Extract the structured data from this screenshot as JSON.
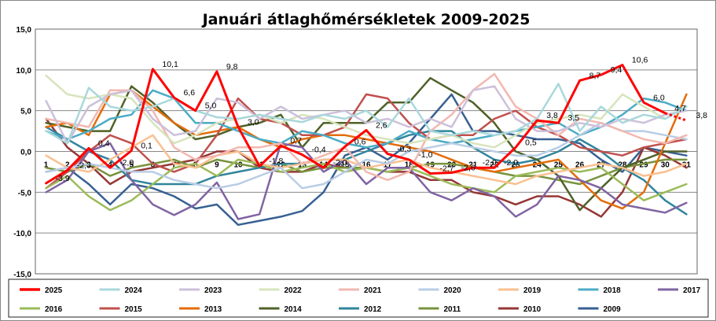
{
  "chart_data": {
    "type": "line",
    "title": "Januári átlaghőmérsékletek 2009-2025",
    "x": [
      1,
      2,
      3,
      4,
      5,
      6,
      7,
      8,
      9,
      10,
      11,
      12,
      13,
      14,
      15,
      16,
      17,
      18,
      19,
      20,
      21,
      22,
      23,
      24,
      25,
      26,
      27,
      28,
      29,
      30,
      31
    ],
    "ylim": [
      -15,
      15
    ],
    "yticks": [
      "15,0",
      "10,0",
      "5,0",
      "0,0",
      "-5,0",
      "-10,0",
      "-15,0"
    ],
    "grid": true,
    "legend_position": "bottom",
    "series": [
      {
        "name": "2025",
        "color": "#ff0000",
        "width": 3,
        "values": [
          -3.9,
          -2.3,
          0.4,
          -2.0,
          0.1,
          10.1,
          6.6,
          5.0,
          9.8,
          3.0,
          -1.8,
          0.7,
          -0.4,
          -2.0,
          0.6,
          2.6,
          -0.3,
          -1.0,
          -2.7,
          -2.6,
          -2.0,
          -2.0,
          0.5,
          3.8,
          3.5,
          8.7,
          9.4,
          10.6,
          6.0,
          4.7,
          3.8
        ],
        "labels": {
          "1": "-3,9",
          "2": "-2,3",
          "3": "0,4",
          "4": "-2,0",
          "5": "0,1",
          "6": "10,1",
          "7": "6,6",
          "8": "5,0",
          "9": "9,8",
          "10": "3,0",
          "11": "-1,8",
          "12": "0,7",
          "13": "-0,4",
          "14": "-2,0",
          "15": "0,6",
          "16": "2,6",
          "17": "-0,3",
          "18": "-1,0",
          "19": "-2,7",
          "20": "-2,6",
          "21": "-2,0",
          "22": "-2,0",
          "23": "0,5",
          "24": "3,8",
          "25": "3,5",
          "26": "8,7",
          "27": "9,4",
          "28": "10,6",
          "29": "6,0",
          "30": "4,7",
          "31": "3,8"
        }
      },
      {
        "name": "2024",
        "color": "#a9d8dc",
        "width": 2.5,
        "values": [
          2.5,
          1.0,
          7.8,
          5.5,
          5.0,
          5.5,
          6.5,
          5.0,
          4.2,
          4.0,
          4.5,
          4.0,
          3.6,
          4.5,
          4.0,
          5.0,
          3.0,
          6.5,
          2.5,
          2.0,
          2.5,
          2.0,
          2.5,
          4.0,
          8.3,
          2.5,
          5.5,
          3.5,
          4.5,
          4.0,
          5.5
        ]
      },
      {
        "name": "2023",
        "color": "#ccc0da",
        "width": 2.5,
        "values": [
          6.2,
          1.0,
          5.5,
          7.0,
          7.5,
          4.0,
          2.0,
          2.5,
          6.5,
          6.0,
          4.0,
          5.5,
          4.0,
          4.5,
          5.0,
          3.5,
          4.0,
          3.0,
          4.0,
          3.0,
          7.5,
          8.0,
          4.0,
          2.5,
          2.5,
          3.5,
          3.0,
          4.0,
          3.5,
          4.5,
          5.0
        ]
      },
      {
        "name": "2022",
        "color": "#d7e4bd",
        "width": 2.5,
        "values": [
          9.3,
          7.0,
          6.5,
          7.0,
          6.5,
          3.5,
          1.0,
          2.0,
          3.5,
          4.0,
          4.5,
          3.5,
          4.5,
          4.0,
          3.0,
          2.0,
          1.5,
          1.0,
          1.5,
          2.0,
          1.0,
          0.5,
          2.0,
          3.5,
          4.0,
          4.5,
          4.0,
          7.0,
          5.5,
          4.0,
          5.5
        ]
      },
      {
        "name": "2021",
        "color": "#f2b8b0",
        "width": 2.5,
        "values": [
          4.0,
          3.5,
          3.0,
          7.5,
          7.5,
          5.0,
          0.5,
          -1.0,
          -0.5,
          0.5,
          0.5,
          1.0,
          -1.5,
          -0.5,
          0.5,
          -2.5,
          -3.5,
          -2.5,
          2.5,
          4.5,
          7.5,
          9.5,
          5.5,
          4.0,
          2.0,
          4.0,
          3.5,
          2.5,
          1.5,
          1.0,
          2.0
        ]
      },
      {
        "name": "2020",
        "color": "#b9cde5",
        "width": 2.5,
        "values": [
          -2.5,
          -2.0,
          -1.5,
          -2.0,
          -2.5,
          -2.5,
          -3.5,
          -4.0,
          -4.5,
          -4.0,
          -3.0,
          -2.0,
          -4.5,
          -4.0,
          -2.5,
          -1.0,
          -1.5,
          0.0,
          0.5,
          1.0,
          0.5,
          0.0,
          -0.5,
          -0.5,
          0.5,
          2.0,
          3.5,
          2.5,
          2.5,
          2.0,
          1.5
        ]
      },
      {
        "name": "2019",
        "color": "#fac090",
        "width": 2.5,
        "values": [
          -0.5,
          -2.0,
          -2.5,
          -1.0,
          0.5,
          2.0,
          -1.5,
          -2.0,
          -0.5,
          0.0,
          -1.5,
          -2.0,
          -1.5,
          -1.0,
          -1.0,
          -2.0,
          -1.5,
          -1.0,
          -2.0,
          -2.5,
          -3.0,
          -3.5,
          -4.0,
          -3.0,
          -2.5,
          -2.0,
          -1.5,
          -2.0,
          -3.0,
          -2.5,
          -1.5
        ]
      },
      {
        "name": "2018",
        "color": "#4bacc6",
        "width": 2.5,
        "values": [
          2.5,
          1.5,
          2.5,
          4.0,
          4.5,
          7.5,
          6.5,
          3.5,
          3.5,
          2.5,
          1.5,
          1.0,
          2.5,
          2.0,
          1.0,
          0.5,
          1.0,
          2.5,
          1.5,
          1.0,
          1.5,
          2.0,
          2.5,
          3.0,
          3.5,
          2.0,
          3.0,
          4.5,
          6.5,
          6.0,
          5.0
        ]
      },
      {
        "name": "2017",
        "color": "#8064a2",
        "width": 2.5,
        "values": [
          -5.0,
          -3.5,
          0.0,
          1.0,
          -3.5,
          -6.5,
          -7.8,
          -6.5,
          -3.8,
          -8.3,
          -7.7,
          1.0,
          0.5,
          -2.5,
          -1.0,
          -4.0,
          -2.0,
          -2.0,
          -5.0,
          -6.0,
          -4.5,
          -5.5,
          -8.0,
          -6.5,
          -3.0,
          -3.5,
          -4.5,
          -6.5,
          -7.0,
          -7.5,
          -6.3
        ]
      },
      {
        "name": "2016",
        "color": "#9bbb59",
        "width": 2.5,
        "values": [
          -4.5,
          -3.0,
          -5.5,
          -7.2,
          -6.0,
          -4.0,
          -2.0,
          -1.5,
          -3.0,
          -1.0,
          -1.5,
          -2.5,
          -2.0,
          -1.5,
          -2.5,
          -2.0,
          -2.5,
          -2.0,
          -3.0,
          -4.0,
          -4.5,
          -5.0,
          -3.0,
          -2.5,
          -2.0,
          -2.5,
          -2.0,
          -4.0,
          -6.0,
          -5.0,
          -4.0
        ]
      },
      {
        "name": "2015",
        "color": "#c0504d",
        "width": 2.5,
        "values": [
          -4.5,
          -2.5,
          0.0,
          2.0,
          1.0,
          -1.5,
          -2.5,
          -1.5,
          2.0,
          6.5,
          4.0,
          3.5,
          2.0,
          2.0,
          3.0,
          7.0,
          6.5,
          3.5,
          1.5,
          2.0,
          2.0,
          4.0,
          5.0,
          3.0,
          2.0,
          0.5,
          0.0,
          -0.5,
          0.5,
          1.0,
          1.5
        ]
      },
      {
        "name": "2013",
        "color": "#e46c0a",
        "width": 2.5,
        "values": [
          3.0,
          3.5,
          2.0,
          7.0,
          7.5,
          5.5,
          3.5,
          2.0,
          2.5,
          3.0,
          1.5,
          0.5,
          1.5,
          2.0,
          2.0,
          1.5,
          1.0,
          0.5,
          0.0,
          -1.0,
          -2.0,
          -2.5,
          -2.0,
          -1.5,
          -1.0,
          -3.5,
          -6.0,
          -7.0,
          -5.0,
          1.0,
          7.0
        ]
      },
      {
        "name": "2014",
        "color": "#4f6228",
        "width": 2.5,
        "values": [
          3.5,
          3.0,
          2.5,
          2.5,
          8.0,
          6.0,
          3.5,
          1.5,
          2.0,
          3.0,
          3.5,
          4.5,
          0.5,
          3.5,
          3.5,
          3.5,
          6.0,
          6.0,
          9.0,
          7.5,
          6.0,
          3.5,
          0.0,
          -1.0,
          -3.0,
          -7.2,
          -4.5,
          -2.0,
          -1.0,
          0.0,
          0.0
        ]
      },
      {
        "name": "2012",
        "color": "#31859c",
        "width": 2.5,
        "values": [
          3.0,
          1.5,
          0.0,
          -1.0,
          -3.5,
          -4.0,
          -4.0,
          -4.0,
          -3.0,
          -2.5,
          -2.0,
          -1.5,
          -1.5,
          -1.0,
          -1.0,
          0.0,
          1.0,
          2.0,
          2.5,
          2.5,
          0.5,
          -1.0,
          -1.5,
          -1.0,
          0.0,
          1.5,
          0.0,
          -2.0,
          -3.5,
          -6.0,
          -7.7
        ]
      },
      {
        "name": "2011",
        "color": "#77933c",
        "width": 2.5,
        "values": [
          -2.0,
          -2.5,
          -1.5,
          -3.0,
          -2.0,
          -1.5,
          -1.0,
          -2.0,
          -1.0,
          -1.5,
          -2.0,
          -1.5,
          -2.5,
          -2.0,
          -2.0,
          -2.0,
          -2.5,
          -2.0,
          -1.5,
          -1.5,
          -2.0,
          -2.5,
          -3.0,
          -3.0,
          -3.5,
          -4.0,
          -3.0,
          -2.0,
          -1.5,
          -1.0,
          -1.0
        ]
      },
      {
        "name": "2010",
        "color": "#953735",
        "width": 2.5,
        "values": [
          4.0,
          0.5,
          -1.5,
          -4.0,
          -2.5,
          -2.0,
          -1.5,
          -1.0,
          0.0,
          0.0,
          -2.0,
          -2.5,
          -2.5,
          -1.5,
          -2.0,
          -2.0,
          -2.5,
          -2.5,
          -3.5,
          -3.5,
          -5.0,
          -5.5,
          -6.5,
          -5.5,
          -5.5,
          -6.5,
          -8.0,
          -5.0,
          0.5,
          -0.5,
          -2.0
        ]
      },
      {
        "name": "2009",
        "color": "#376092",
        "width": 2.5,
        "values": [
          -2.5,
          -2.0,
          -4.0,
          -6.5,
          -4.0,
          -4.5,
          -5.5,
          -7.0,
          -6.5,
          -9.0,
          -8.5,
          -8.0,
          -7.3,
          -5.0,
          -0.5,
          0.5,
          -1.0,
          1.0,
          4.0,
          7.0,
          2.5,
          2.5,
          2.0,
          1.5,
          1.5,
          1.0,
          -1.0,
          -2.5,
          0.5,
          0.0,
          -0.5
        ]
      }
    ]
  }
}
